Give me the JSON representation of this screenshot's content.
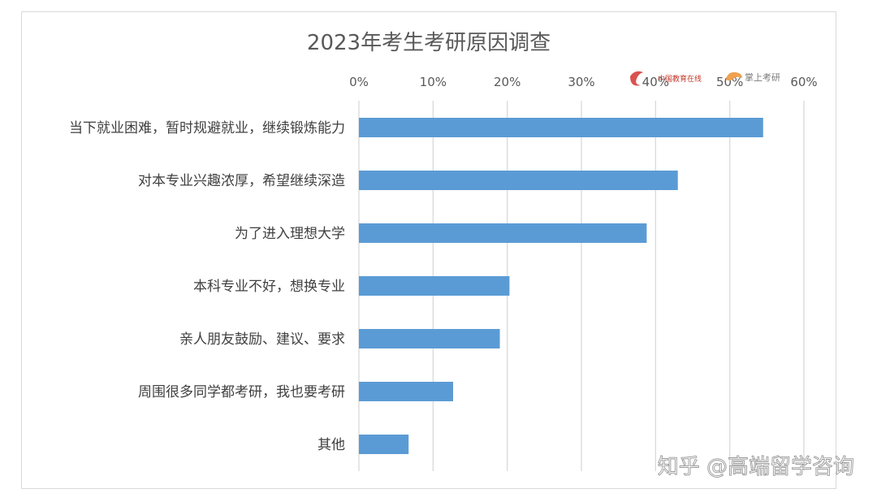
{
  "chart_data": {
    "type": "bar",
    "orientation": "horizontal",
    "title": "2023年考生考研原因调查",
    "xlabel": "",
    "ylabel": "",
    "xlim": [
      0,
      0.6
    ],
    "x_ticks": [
      "0%",
      "10%",
      "20%",
      "30%",
      "40%",
      "50%",
      "60%"
    ],
    "x_axis_position": "top",
    "grid": true,
    "categories": [
      "当下就业困难，暂时规避就业，继续锻炼能力",
      "对本专业兴趣浓厚，希望继续深造",
      "为了进入理想大学",
      "本科专业不好，想换专业",
      "亲人朋友鼓励、建议、要求",
      "周围很多同学都考研，我也要考研",
      "其他"
    ],
    "values": [
      0.545,
      0.43,
      0.388,
      0.203,
      0.19,
      0.127,
      0.067
    ]
  },
  "colors": {
    "bar": "#5b9bd5",
    "grid": "#d9d9d9",
    "text": "#595959"
  },
  "logos": {
    "left_icon": "red-swirl-logo",
    "left_text": "中国教育在线",
    "right_icon": "orange-logo",
    "right_text": "掌上考研"
  },
  "watermark": {
    "text": "知乎 @高端留学咨询"
  }
}
